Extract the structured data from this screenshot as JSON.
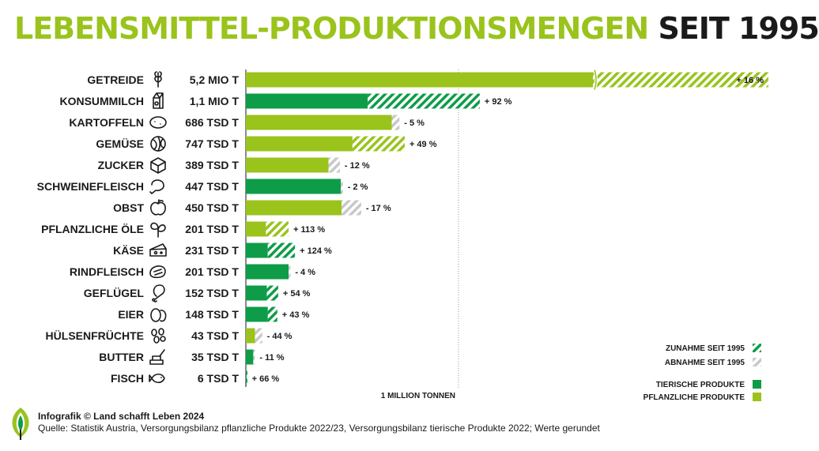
{
  "title": {
    "part1": "LEBENSMITTEL-PRODUKTIONSMENGEN",
    "part2": "SEIT 1995"
  },
  "colors": {
    "plant": "#9ac31c",
    "animal": "#0e9c48",
    "decrease": "#c8c8c8",
    "text": "#1a1a1a"
  },
  "chart_data": {
    "type": "bar",
    "orientation": "horizontal",
    "unit_reference": "1 MILLION TONNEN",
    "axis_break": true,
    "categories": [
      {
        "name": "GETREIDE",
        "label": "5,2 MIO T",
        "value_t": 5200000,
        "change": "+ 16 %",
        "change_pct": 16,
        "kind": "plant",
        "icon": "wheat-icon"
      },
      {
        "name": "KONSUMMILCH",
        "label": "1,1 MIO T",
        "value_t": 1100000,
        "change": "+ 92 %",
        "change_pct": 92,
        "kind": "animal",
        "icon": "milk-carton-icon"
      },
      {
        "name": "KARTOFFELN",
        "label": "686 TSD T",
        "value_t": 686000,
        "change": "- 5 %",
        "change_pct": -5,
        "kind": "plant",
        "icon": "potato-icon"
      },
      {
        "name": "GEMÜSE",
        "label": "747 TSD T",
        "value_t": 747000,
        "change": "+ 49 %",
        "change_pct": 49,
        "kind": "plant",
        "icon": "cabbage-icon"
      },
      {
        "name": "ZUCKER",
        "label": "389 TSD T",
        "value_t": 389000,
        "change": "- 12 %",
        "change_pct": -12,
        "kind": "plant",
        "icon": "sugar-cube-icon"
      },
      {
        "name": "SCHWEINEFLEISCH",
        "label": "447 TSD T",
        "value_t": 447000,
        "change": "- 2 %",
        "change_pct": -2,
        "kind": "animal",
        "icon": "ham-icon"
      },
      {
        "name": "OBST",
        "label": "450 TSD T",
        "value_t": 450000,
        "change": "- 17 %",
        "change_pct": -17,
        "kind": "plant",
        "icon": "apple-icon"
      },
      {
        "name": "PFLANZLICHE ÖLE",
        "label": "201 TSD T",
        "value_t": 201000,
        "change": "+ 113 %",
        "change_pct": 113,
        "kind": "plant",
        "icon": "sprout-icon"
      },
      {
        "name": "KÄSE",
        "label": "231 TSD T",
        "value_t": 231000,
        "change": "+ 124 %",
        "change_pct": 124,
        "kind": "animal",
        "icon": "cheese-icon"
      },
      {
        "name": "RINDFLEISCH",
        "label": "201 TSD T",
        "value_t": 201000,
        "change": "- 4 %",
        "change_pct": -4,
        "kind": "animal",
        "icon": "steak-icon"
      },
      {
        "name": "GEFLÜGEL",
        "label": "152 TSD T",
        "value_t": 152000,
        "change": "+ 54 %",
        "change_pct": 54,
        "kind": "animal",
        "icon": "drumstick-icon"
      },
      {
        "name": "EIER",
        "label": "148 TSD T",
        "value_t": 148000,
        "change": "+ 43 %",
        "change_pct": 43,
        "kind": "animal",
        "icon": "eggs-icon"
      },
      {
        "name": "HÜLSENFRÜCHTE",
        "label": "43 TSD T",
        "value_t": 43000,
        "change": "- 44 %",
        "change_pct": -44,
        "kind": "plant",
        "icon": "beans-icon"
      },
      {
        "name": "BUTTER",
        "label": "35 TSD T",
        "value_t": 35000,
        "change": "- 11 %",
        "change_pct": -11,
        "kind": "animal",
        "icon": "butter-icon"
      },
      {
        "name": "FISCH",
        "label": "6 TSD T",
        "value_t": 6000,
        "change": "+ 66 %",
        "change_pct": 66,
        "kind": "animal",
        "icon": "fish-icon"
      }
    ],
    "legend": [
      {
        "label": "ZUNAHME SEIT 1995",
        "pattern": "hatch-green"
      },
      {
        "label": "ABNAHME SEIT 1995",
        "pattern": "hatch-grey"
      },
      {
        "label": "TIERISCHE PRODUKTE",
        "pattern": "animal"
      },
      {
        "label": "PFLANZLICHE PRODUKTE",
        "pattern": "plant"
      }
    ]
  },
  "footer": {
    "credit": "Infografik © Land schafft Leben 2024",
    "source": "Quelle: Statistik Austria, Versorgungsbilanz pflanzliche Produkte 2022/23, Versorgungsbilanz tierische Produkte 2022; Werte gerundet"
  }
}
